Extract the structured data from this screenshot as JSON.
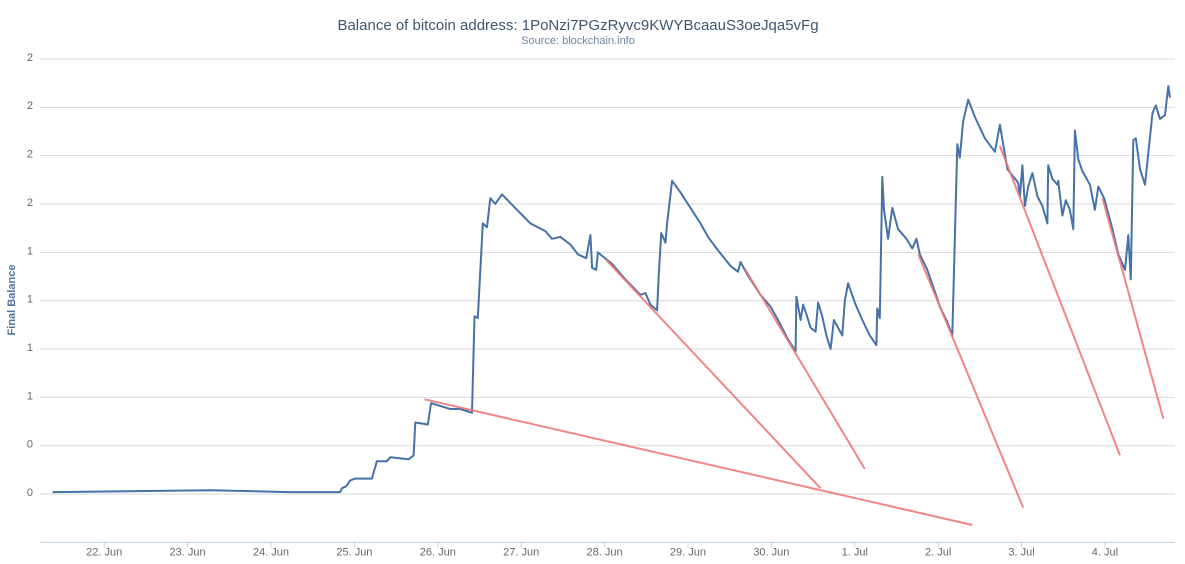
{
  "chart_data": {
    "type": "line",
    "title": "Balance of bitcoin address: 1PoNzi7PGzRyvc9KWYBcaauS3oeJqa5vFg",
    "subtitle": "Source: blockchain.info",
    "y_label": "Final Balance",
    "xlim": [
      -0.77,
      12.84
    ],
    "xticks": [
      {
        "value": 0,
        "label": "22. Jun"
      },
      {
        "value": 1,
        "label": "23. Jun"
      },
      {
        "value": 2,
        "label": "24. Jun"
      },
      {
        "value": 3,
        "label": "25. Jun"
      },
      {
        "value": 4,
        "label": "26. Jun"
      },
      {
        "value": 5,
        "label": "27. Jun"
      },
      {
        "value": 6,
        "label": "28. Jun"
      },
      {
        "value": 7,
        "label": "29. Jun"
      },
      {
        "value": 8,
        "label": "30. Jun"
      },
      {
        "value": 9,
        "label": "1. Jul"
      },
      {
        "value": 10,
        "label": "2. Jul"
      },
      {
        "value": 11,
        "label": "3. Jul"
      },
      {
        "value": 12,
        "label": "4. Jul"
      }
    ],
    "ylim": [
      -0.25,
      2.25
    ],
    "yticks": [
      {
        "value": 0,
        "label": "0"
      },
      {
        "value": 0.25,
        "label": "0"
      },
      {
        "value": 0.5,
        "label": "1"
      },
      {
        "value": 0.75,
        "label": "1"
      },
      {
        "value": 1,
        "label": "1"
      },
      {
        "value": 1.25,
        "label": "1"
      },
      {
        "value": 1.5,
        "label": "2"
      },
      {
        "value": 1.75,
        "label": "2"
      },
      {
        "value": 2,
        "label": "2"
      },
      {
        "value": 2.25,
        "label": "2"
      }
    ],
    "grid": true,
    "series": [
      {
        "name": "Final Balance",
        "color": "#4572a7",
        "x": [
          -0.62,
          1.27,
          2.23,
          2.83,
          2.85,
          2.9,
          2.95,
          3.01,
          3.21,
          3.27,
          3.39,
          3.43,
          3.65,
          3.71,
          3.73,
          3.88,
          3.92,
          4.15,
          4.27,
          4.41,
          4.44,
          4.48,
          4.54,
          4.59,
          4.63,
          4.69,
          4.72,
          4.77,
          5.11,
          5.29,
          5.37,
          5.47,
          5.59,
          5.68,
          5.78,
          5.83,
          5.85,
          5.9,
          5.92,
          6.09,
          6.25,
          6.43,
          6.49,
          6.55,
          6.63,
          6.65,
          6.68,
          6.73,
          6.75,
          6.81,
          6.91,
          7.03,
          7.15,
          7.24,
          7.36,
          7.51,
          7.6,
          7.63,
          7.72,
          7.87,
          7.99,
          8.08,
          8.2,
          8.29,
          8.3,
          8.35,
          8.38,
          8.42,
          8.47,
          8.53,
          8.56,
          8.61,
          8.66,
          8.71,
          8.75,
          8.85,
          8.88,
          8.92,
          9.0,
          9.09,
          9.18,
          9.26,
          9.27,
          9.3,
          9.33,
          9.35,
          9.4,
          9.45,
          9.52,
          9.62,
          9.69,
          9.74,
          9.78,
          9.87,
          9.95,
          10.02,
          10.11,
          10.17,
          10.23,
          10.26,
          10.3,
          10.36,
          10.44,
          10.56,
          10.68,
          10.74,
          10.83,
          10.96,
          10.98,
          11.01,
          11.04,
          11.08,
          11.13,
          11.19,
          11.25,
          11.31,
          11.32,
          11.37,
          11.43,
          11.44,
          11.49,
          11.53,
          11.58,
          11.62,
          11.64,
          11.68,
          11.73,
          11.82,
          11.88,
          11.92,
          11.99,
          12.09,
          12.16,
          12.24,
          12.28,
          12.31,
          12.34,
          12.37,
          12.42,
          12.48,
          12.57,
          12.61,
          12.66,
          12.72,
          12.76,
          12.78
        ],
        "values": [
          0.01,
          0.02,
          0.01,
          0.01,
          0.03,
          0.04,
          0.07,
          0.08,
          0.08,
          0.17,
          0.17,
          0.19,
          0.18,
          0.2,
          0.37,
          0.36,
          0.47,
          0.44,
          0.44,
          0.42,
          0.92,
          0.91,
          1.4,
          1.38,
          1.53,
          1.5,
          1.52,
          1.55,
          1.4,
          1.36,
          1.32,
          1.33,
          1.29,
          1.24,
          1.22,
          1.34,
          1.17,
          1.16,
          1.25,
          1.19,
          1.11,
          1.03,
          1.04,
          0.98,
          0.95,
          1.14,
          1.35,
          1.3,
          1.4,
          1.62,
          1.56,
          1.48,
          1.4,
          1.33,
          1.26,
          1.18,
          1.15,
          1.2,
          1.13,
          1.03,
          0.97,
          0.9,
          0.8,
          0.74,
          1.02,
          0.9,
          0.98,
          0.93,
          0.86,
          0.84,
          0.99,
          0.92,
          0.82,
          0.75,
          0.9,
          0.82,
          1.0,
          1.09,
          0.99,
          0.9,
          0.82,
          0.77,
          0.96,
          0.91,
          1.64,
          1.47,
          1.32,
          1.48,
          1.37,
          1.32,
          1.27,
          1.32,
          1.24,
          1.16,
          1.06,
          0.97,
          0.89,
          0.82,
          1.81,
          1.74,
          1.93,
          2.04,
          1.95,
          1.84,
          1.77,
          1.91,
          1.68,
          1.61,
          1.54,
          1.7,
          1.49,
          1.59,
          1.66,
          1.54,
          1.49,
          1.4,
          1.7,
          1.63,
          1.6,
          1.62,
          1.44,
          1.52,
          1.47,
          1.37,
          1.88,
          1.73,
          1.67,
          1.6,
          1.47,
          1.59,
          1.53,
          1.37,
          1.24,
          1.16,
          1.34,
          1.11,
          1.83,
          1.84,
          1.68,
          1.6,
          1.97,
          2.01,
          1.94,
          1.96,
          2.11,
          2.05
        ]
      }
    ],
    "trend_lines": {
      "color": "#f07878",
      "lines": [
        {
          "x": [
            3.84,
            10.41
          ],
          "y": [
            0.49,
            -0.16
          ]
        },
        {
          "x": [
            6.02,
            8.59
          ],
          "y": [
            1.21,
            0.03
          ]
        },
        {
          "x": [
            7.69,
            9.12
          ],
          "y": [
            1.16,
            0.13
          ]
        },
        {
          "x": [
            9.76,
            11.02
          ],
          "y": [
            1.24,
            -0.07
          ]
        },
        {
          "x": [
            10.74,
            12.18
          ],
          "y": [
            1.8,
            0.2
          ]
        },
        {
          "x": [
            11.97,
            12.7
          ],
          "y": [
            1.53,
            0.39
          ]
        }
      ]
    }
  }
}
